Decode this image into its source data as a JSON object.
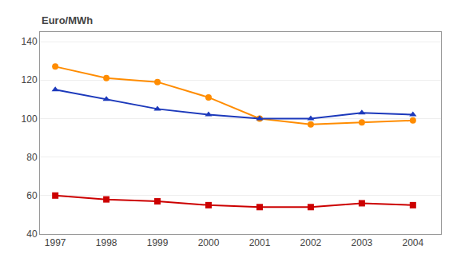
{
  "chart_data": {
    "type": "line",
    "ylabel": "Euro/MWh",
    "x": [
      1997,
      1998,
      1999,
      2000,
      2001,
      2002,
      2003,
      2004
    ],
    "series": [
      {
        "color": "#FF8C00",
        "marker": "circle",
        "values": [
          127,
          121,
          119,
          111,
          100,
          97,
          98,
          99
        ]
      },
      {
        "color": "#1C39BB",
        "marker": "triangle",
        "values": [
          115,
          110,
          105,
          102,
          100,
          100,
          103,
          102
        ]
      },
      {
        "color": "#CC0000",
        "marker": "square",
        "values": [
          60,
          58,
          57,
          55,
          54,
          54,
          56,
          55
        ]
      }
    ],
    "xlim": [
      1996.7,
      2004.55
    ],
    "xticks": [
      1997,
      1998,
      1999,
      2000,
      2001,
      2002,
      2003,
      2004
    ],
    "ylim": [
      40,
      145
    ],
    "yticks": [
      40,
      60,
      80,
      100,
      120,
      140
    ],
    "grid": "y"
  }
}
